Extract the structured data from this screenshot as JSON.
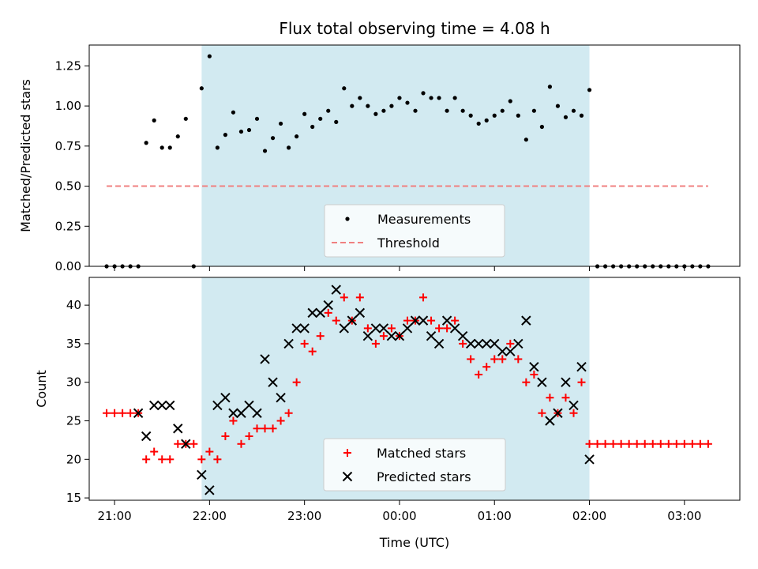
{
  "chart_data": [
    {
      "type": "scatter",
      "title": "Flux total observing time = 4.08 h",
      "xlabel": "",
      "ylabel": "Matched/Predicted stars",
      "xlim": [
        "20:44",
        "03:35"
      ],
      "ylim": [
        0,
        1.38
      ],
      "yticks": [
        0.0,
        0.25,
        0.5,
        0.75,
        1.0,
        1.25
      ],
      "ytick_labels": [
        "0.00",
        "0.25",
        "0.50",
        "0.75",
        "1.00",
        "1.25"
      ],
      "shaded_interval": [
        "21:55",
        "02:00"
      ],
      "shade_color": "#add8e6",
      "legend_position": "lower-center",
      "series": [
        {
          "name": "Measurements",
          "kind": "scatter",
          "color": "#000000",
          "x": [
            "20:55",
            "21:00",
            "21:05",
            "21:10",
            "21:15",
            "21:20",
            "21:25",
            "21:30",
            "21:35",
            "21:40",
            "21:45",
            "21:50",
            "21:55",
            "22:00",
            "22:05",
            "22:10",
            "22:15",
            "22:20",
            "22:25",
            "22:30",
            "22:35",
            "22:40",
            "22:45",
            "22:50",
            "22:55",
            "23:00",
            "23:05",
            "23:10",
            "23:15",
            "23:20",
            "23:25",
            "23:30",
            "23:35",
            "23:40",
            "23:45",
            "23:50",
            "23:55",
            "00:00",
            "00:05",
            "00:10",
            "00:15",
            "00:20",
            "00:25",
            "00:30",
            "00:35",
            "00:40",
            "00:45",
            "00:50",
            "00:55",
            "01:00",
            "01:05",
            "01:10",
            "01:15",
            "01:20",
            "01:25",
            "01:30",
            "01:35",
            "01:40",
            "01:45",
            "01:50",
            "01:55",
            "02:00",
            "02:05",
            "02:10",
            "02:15",
            "02:20",
            "02:25",
            "02:30",
            "02:35",
            "02:40",
            "02:45",
            "02:50",
            "02:55",
            "03:00",
            "03:05",
            "03:10",
            "03:15"
          ],
          "y": [
            0,
            0,
            0,
            0,
            0,
            0.77,
            0.91,
            0.74,
            0.74,
            0.81,
            0.92,
            0,
            1.11,
            1.31,
            0.74,
            0.82,
            0.96,
            0.84,
            0.85,
            0.92,
            0.72,
            0.8,
            0.89,
            0.74,
            0.81,
            0.95,
            0.87,
            0.92,
            0.97,
            0.9,
            1.11,
            1.0,
            1.05,
            1.0,
            0.95,
            0.97,
            1.0,
            1.05,
            1.02,
            0.97,
            1.08,
            1.05,
            1.05,
            0.97,
            1.05,
            0.97,
            0.94,
            0.89,
            0.91,
            0.94,
            0.97,
            1.03,
            0.94,
            0.79,
            0.97,
            0.87,
            1.12,
            1.0,
            0.93,
            0.97,
            0.94,
            1.1,
            0,
            0,
            0,
            0,
            0,
            0,
            0,
            0,
            0,
            0,
            0,
            0,
            0,
            0,
            0
          ]
        },
        {
          "name": "Threshold",
          "kind": "line",
          "style": "dashed",
          "color": "#f08080",
          "x": [
            "20:55",
            "03:15"
          ],
          "y": [
            0.5,
            0.5
          ]
        }
      ]
    },
    {
      "type": "scatter",
      "title": "",
      "xlabel": "Time (UTC)",
      "ylabel": "Count",
      "xlim": [
        "20:44",
        "03:35"
      ],
      "ylim": [
        14.7,
        43.6
      ],
      "yticks": [
        15,
        20,
        25,
        30,
        35,
        40
      ],
      "xticks": [
        "21:00",
        "22:00",
        "23:00",
        "00:00",
        "01:00",
        "02:00",
        "03:00"
      ],
      "shaded_interval": [
        "21:55",
        "02:00"
      ],
      "shade_color": "#add8e6",
      "legend_position": "lower-center",
      "series": [
        {
          "name": "Matched stars",
          "marker": "plus",
          "color": "#ff0000",
          "x": [
            "20:55",
            "21:00",
            "21:05",
            "21:10",
            "21:15",
            "21:20",
            "21:25",
            "21:30",
            "21:35",
            "21:40",
            "21:45",
            "21:50",
            "21:55",
            "22:00",
            "22:05",
            "22:10",
            "22:15",
            "22:20",
            "22:25",
            "22:30",
            "22:35",
            "22:40",
            "22:45",
            "22:50",
            "22:55",
            "23:00",
            "23:05",
            "23:10",
            "23:15",
            "23:20",
            "23:25",
            "23:30",
            "23:35",
            "23:40",
            "23:45",
            "23:50",
            "23:55",
            "00:00",
            "00:05",
            "00:10",
            "00:15",
            "00:20",
            "00:25",
            "00:30",
            "00:35",
            "00:40",
            "00:45",
            "00:50",
            "00:55",
            "01:00",
            "01:05",
            "01:10",
            "01:15",
            "01:20",
            "01:25",
            "01:30",
            "01:35",
            "01:40",
            "01:45",
            "01:50",
            "01:55",
            "02:00",
            "02:05",
            "02:10",
            "02:15",
            "02:20",
            "02:25",
            "02:30",
            "02:35",
            "02:40",
            "02:45",
            "02:50",
            "02:55",
            "03:00",
            "03:05",
            "03:10",
            "03:15"
          ],
          "y": [
            26,
            26,
            26,
            26,
            26,
            20,
            21,
            20,
            20,
            22,
            22,
            22,
            20,
            21,
            20,
            23,
            25,
            22,
            23,
            24,
            24,
            24,
            25,
            26,
            30,
            35,
            34,
            36,
            39,
            38,
            41,
            38,
            41,
            37,
            35,
            36,
            37,
            36,
            38,
            38,
            41,
            38,
            37,
            37,
            38,
            35,
            33,
            31,
            32,
            33,
            33,
            35,
            33,
            30,
            31,
            26,
            28,
            26,
            28,
            26,
            30,
            22,
            22,
            22,
            22,
            22,
            22,
            22,
            22,
            22,
            22,
            22,
            22,
            22,
            22,
            22,
            22
          ]
        },
        {
          "name": "Predicted stars",
          "marker": "x",
          "color": "#000000",
          "x": [
            "21:15",
            "21:20",
            "21:25",
            "21:30",
            "21:35",
            "21:40",
            "21:45",
            "21:55",
            "22:00",
            "22:05",
            "22:10",
            "22:15",
            "22:20",
            "22:25",
            "22:30",
            "22:35",
            "22:40",
            "22:45",
            "22:50",
            "22:55",
            "23:00",
            "23:05",
            "23:10",
            "23:15",
            "23:20",
            "23:25",
            "23:30",
            "23:35",
            "23:40",
            "23:45",
            "23:50",
            "23:55",
            "00:00",
            "00:05",
            "00:10",
            "00:15",
            "00:20",
            "00:25",
            "00:30",
            "00:35",
            "00:40",
            "00:45",
            "00:50",
            "00:55",
            "01:00",
            "01:05",
            "01:10",
            "01:15",
            "01:20",
            "01:25",
            "01:30",
            "01:35",
            "01:40",
            "01:45",
            "01:50",
            "01:55",
            "02:00"
          ],
          "y": [
            26,
            23,
            27,
            27,
            27,
            24,
            22,
            18,
            16,
            27,
            28,
            26,
            26,
            27,
            26,
            33,
            30,
            28,
            35,
            37,
            37,
            39,
            39,
            40,
            42,
            37,
            38,
            39,
            36,
            37,
            37,
            36,
            36,
            37,
            38,
            38,
            36,
            35,
            38,
            37,
            36,
            35,
            35,
            35,
            35,
            34,
            34,
            35,
            38,
            32,
            30,
            25,
            26,
            30,
            27,
            32,
            20
          ]
        }
      ]
    }
  ]
}
